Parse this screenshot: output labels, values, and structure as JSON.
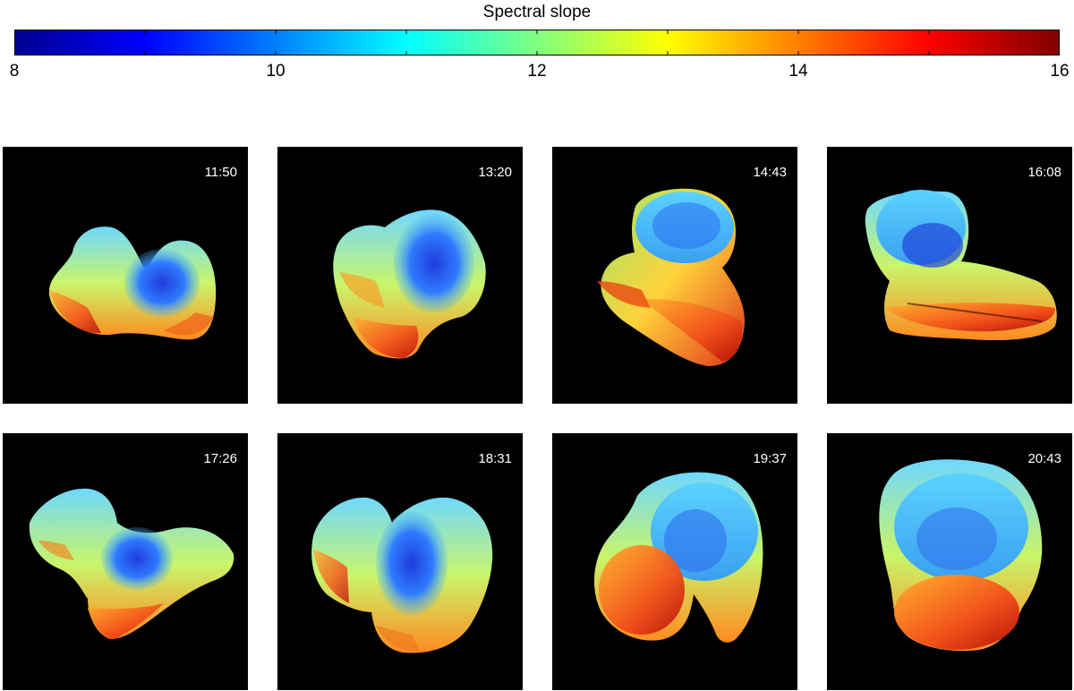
{
  "colorbar": {
    "title": "Spectral slope",
    "min": 8,
    "max": 16,
    "tick_labels": [
      "8",
      "10",
      "12",
      "14",
      "16"
    ],
    "colors": [
      "#00008f",
      "#0000ff",
      "#00ffff",
      "#ffff00",
      "#ff0000",
      "#7f0000"
    ]
  },
  "panels": [
    {
      "time": "11:50"
    },
    {
      "time": "13:20"
    },
    {
      "time": "14:43"
    },
    {
      "time": "16:08"
    },
    {
      "time": "17:26"
    },
    {
      "time": "18:31"
    },
    {
      "time": "19:37"
    },
    {
      "time": "20:43"
    }
  ]
}
